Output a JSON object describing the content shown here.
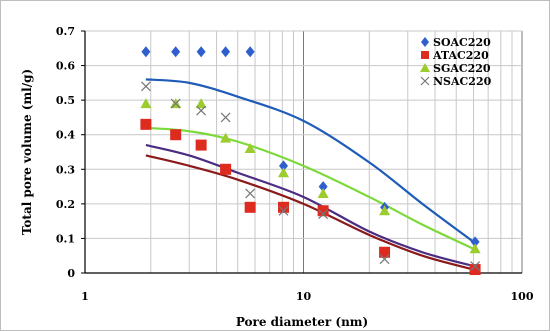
{
  "chart_data": {
    "type": "scatter",
    "title": "",
    "xlabel": "Pore diameter (nm)",
    "ylabel": "Total pore volume (ml/g)",
    "x_scale": "log",
    "xlim": [
      1,
      100
    ],
    "ylim": [
      0,
      0.7
    ],
    "x_ticks": [
      1,
      10,
      100
    ],
    "x_tick_labels": [
      "1",
      "10",
      "100"
    ],
    "x_minor_gridlines": [
      2,
      3,
      4,
      5,
      6,
      7,
      8,
      9,
      20,
      30,
      40,
      50,
      60,
      70,
      80,
      90
    ],
    "y_ticks": [
      0,
      0.1,
      0.2,
      0.3,
      0.4,
      0.5,
      0.6,
      0.7
    ],
    "y_tick_labels": [
      "0",
      "0.1",
      "0.2",
      "0.3",
      "0.4",
      "0.5",
      "0.6",
      "0.7"
    ],
    "grid": true,
    "legend_position": "top-right",
    "series": [
      {
        "name": "SOAC220",
        "color": "#2e5fcc",
        "marker": "diamond",
        "points": [
          [
            1.9,
            0.64
          ],
          [
            2.6,
            0.64
          ],
          [
            3.4,
            0.64
          ],
          [
            4.4,
            0.64
          ],
          [
            5.7,
            0.64
          ],
          [
            8.1,
            0.31
          ],
          [
            12.3,
            0.25
          ],
          [
            23.5,
            0.19
          ],
          [
            61,
            0.09
          ]
        ],
        "fit": [
          [
            1.9,
            0.56
          ],
          [
            3,
            0.55
          ],
          [
            5,
            0.51
          ],
          [
            10,
            0.44
          ],
          [
            20,
            0.32
          ],
          [
            35,
            0.2
          ],
          [
            60,
            0.09
          ]
        ],
        "fit_color": "#1f5cb8"
      },
      {
        "name": "ATAC220",
        "color": "#dd2b1f",
        "marker": "square",
        "points": [
          [
            1.9,
            0.43
          ],
          [
            2.6,
            0.4
          ],
          [
            3.4,
            0.37
          ],
          [
            4.4,
            0.3
          ],
          [
            5.7,
            0.19
          ],
          [
            8.1,
            0.19
          ],
          [
            12.3,
            0.18
          ],
          [
            23.5,
            0.06
          ],
          [
            61,
            0.01
          ]
        ],
        "fit": [
          [
            1.9,
            0.34
          ],
          [
            3,
            0.31
          ],
          [
            5,
            0.27
          ],
          [
            10,
            0.2
          ],
          [
            20,
            0.11
          ],
          [
            35,
            0.05
          ],
          [
            60,
            0.01
          ]
        ],
        "fit_color": "#8b1a1a"
      },
      {
        "name": "SGAC220",
        "color": "#9ccc2e",
        "marker": "triangle",
        "points": [
          [
            1.9,
            0.49
          ],
          [
            2.6,
            0.49
          ],
          [
            3.4,
            0.49
          ],
          [
            4.4,
            0.39
          ],
          [
            5.7,
            0.36
          ],
          [
            8.1,
            0.29
          ],
          [
            12.3,
            0.23
          ],
          [
            23.5,
            0.18
          ],
          [
            61,
            0.07
          ]
        ],
        "fit": [
          [
            1.9,
            0.42
          ],
          [
            3,
            0.41
          ],
          [
            5,
            0.38
          ],
          [
            10,
            0.31
          ],
          [
            20,
            0.22
          ],
          [
            35,
            0.14
          ],
          [
            60,
            0.07
          ]
        ],
        "fit_color": "#7cd93a"
      },
      {
        "name": "NSAC220",
        "color": "#777777",
        "marker": "x",
        "points": [
          [
            1.9,
            0.54
          ],
          [
            2.6,
            0.49
          ],
          [
            3.4,
            0.47
          ],
          [
            4.4,
            0.45
          ],
          [
            5.7,
            0.23
          ],
          [
            8.1,
            0.18
          ],
          [
            12.3,
            0.17
          ],
          [
            23.5,
            0.04
          ],
          [
            61,
            0.02
          ]
        ],
        "fit": [
          [
            1.9,
            0.37
          ],
          [
            3,
            0.34
          ],
          [
            5,
            0.29
          ],
          [
            10,
            0.22
          ],
          [
            20,
            0.12
          ],
          [
            35,
            0.06
          ],
          [
            60,
            0.02
          ]
        ],
        "fit_color": "#4a2c82"
      }
    ]
  }
}
